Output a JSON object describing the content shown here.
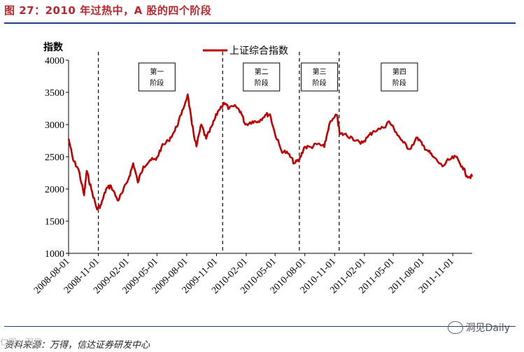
{
  "header": {
    "title": "图 27：2010 年过热中，A 股的四个阶段"
  },
  "footer": {
    "source": "资料来源：万得，信达证券研发中心",
    "watermark_left": "仁图：洞见",
    "watermark_right": "洞见Daily"
  },
  "chart_data": {
    "type": "line",
    "title": "",
    "ylabel": "指数",
    "xlabel": "",
    "ylim": [
      1000,
      4000
    ],
    "yticks": [
      1000,
      1500,
      2000,
      2500,
      3000,
      3500,
      4000
    ],
    "x_ticks": [
      "2008-08-01",
      "2008-11-01",
      "2009-02-01",
      "2009-05-01",
      "2009-08-01",
      "2009-11-01",
      "2010-02-01",
      "2010-05-01",
      "2010-08-01",
      "2010-11-01",
      "2011-02-01",
      "2011-05-01",
      "2011-08-01",
      "2011-11-01"
    ],
    "xlim": [
      "2008-08-01",
      "2011-12-31"
    ],
    "legend": {
      "position": "top-center",
      "label": "上证综合指数"
    },
    "series_color": "#c00000",
    "series": [
      {
        "name": "上证综合指数",
        "points": [
          [
            "2008-08-01",
            2780
          ],
          [
            "2008-08-15",
            2450
          ],
          [
            "2008-09-01",
            2300
          ],
          [
            "2008-09-18",
            1900
          ],
          [
            "2008-09-26",
            2280
          ],
          [
            "2008-10-10",
            2000
          ],
          [
            "2008-10-28",
            1680
          ],
          [
            "2008-11-10",
            1760
          ],
          [
            "2008-11-25",
            2000
          ],
          [
            "2008-12-10",
            2050
          ],
          [
            "2008-12-31",
            1820
          ],
          [
            "2009-01-15",
            1950
          ],
          [
            "2009-02-05",
            2200
          ],
          [
            "2009-02-17",
            2400
          ],
          [
            "2009-03-03",
            2100
          ],
          [
            "2009-03-20",
            2350
          ],
          [
            "2009-04-10",
            2450
          ],
          [
            "2009-04-28",
            2450
          ],
          [
            "2009-05-15",
            2650
          ],
          [
            "2009-06-05",
            2750
          ],
          [
            "2009-06-25",
            2900
          ],
          [
            "2009-07-15",
            3150
          ],
          [
            "2009-08-04",
            3470
          ],
          [
            "2009-08-17",
            3000
          ],
          [
            "2009-08-31",
            2660
          ],
          [
            "2009-09-15",
            3000
          ],
          [
            "2009-09-30",
            2780
          ],
          [
            "2009-10-20",
            3000
          ],
          [
            "2009-11-05",
            3200
          ],
          [
            "2009-11-24",
            3340
          ],
          [
            "2009-12-10",
            3250
          ],
          [
            "2009-12-31",
            3280
          ],
          [
            "2010-01-15",
            3200
          ],
          [
            "2010-01-29",
            3000
          ],
          [
            "2010-02-20",
            3050
          ],
          [
            "2010-03-10",
            3050
          ],
          [
            "2010-04-01",
            3150
          ],
          [
            "2010-04-15",
            3160
          ],
          [
            "2010-04-30",
            2870
          ],
          [
            "2010-05-20",
            2600
          ],
          [
            "2010-06-10",
            2550
          ],
          [
            "2010-06-30",
            2400
          ],
          [
            "2010-07-15",
            2450
          ],
          [
            "2010-07-30",
            2650
          ],
          [
            "2010-08-20",
            2650
          ],
          [
            "2010-09-10",
            2700
          ],
          [
            "2010-09-30",
            2650
          ],
          [
            "2010-10-15",
            3000
          ],
          [
            "2010-11-08",
            3150
          ],
          [
            "2010-11-17",
            2850
          ],
          [
            "2010-12-01",
            2850
          ],
          [
            "2010-12-25",
            2800
          ],
          [
            "2011-01-20",
            2700
          ],
          [
            "2011-02-10",
            2800
          ],
          [
            "2011-03-01",
            2900
          ],
          [
            "2011-04-01",
            2950
          ],
          [
            "2011-04-18",
            3050
          ],
          [
            "2011-05-10",
            2880
          ],
          [
            "2011-06-01",
            2720
          ],
          [
            "2011-06-20",
            2620
          ],
          [
            "2011-07-15",
            2800
          ],
          [
            "2011-07-30",
            2680
          ],
          [
            "2011-08-15",
            2600
          ],
          [
            "2011-09-01",
            2500
          ],
          [
            "2011-09-30",
            2350
          ],
          [
            "2011-10-20",
            2450
          ],
          [
            "2011-11-10",
            2500
          ],
          [
            "2011-11-30",
            2350
          ],
          [
            "2011-12-15",
            2200
          ],
          [
            "2011-12-31",
            2190
          ]
        ]
      }
    ],
    "dividers": [
      "2008-11-01",
      "2009-11-20",
      "2010-07-15",
      "2010-11-15"
    ],
    "stages": [
      {
        "line1": "第一",
        "line2": "阶段",
        "center": "2009-05-01"
      },
      {
        "line1": "第二",
        "line2": "阶段",
        "center": "2010-03-20"
      },
      {
        "line1": "第三",
        "line2": "阶段",
        "center": "2010-09-15"
      },
      {
        "line1": "第四",
        "line2": "阶段",
        "center": "2011-05-20"
      }
    ]
  }
}
